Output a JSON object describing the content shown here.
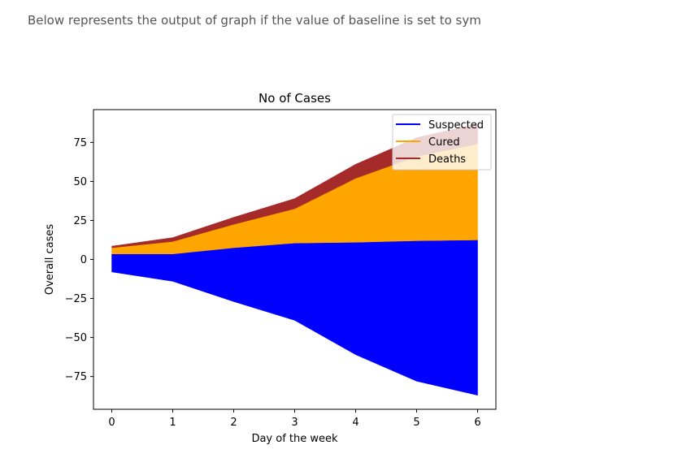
{
  "page": {
    "caption": "Below represents the output of graph if the value of baseline is set to sym"
  },
  "chart_data": {
    "type": "area",
    "stacked": true,
    "baseline": "sym",
    "title": "No of Cases",
    "xlabel": "Day of the week",
    "ylabel": "Overall cases",
    "x": [
      0,
      1,
      2,
      3,
      4,
      5,
      6
    ],
    "xlim": [
      -0.3,
      6.3
    ],
    "ylim": [
      -96,
      96
    ],
    "xticks": [
      "0",
      "1",
      "2",
      "3",
      "4",
      "5",
      "6"
    ],
    "yticks": [
      {
        "value": 75,
        "label": "75"
      },
      {
        "value": 50,
        "label": "50"
      },
      {
        "value": 25,
        "label": "25"
      },
      {
        "value": 0,
        "label": "0"
      },
      {
        "value": -25,
        "label": "−25"
      },
      {
        "value": -50,
        "label": "−50"
      },
      {
        "value": -75,
        "label": "−75"
      }
    ],
    "grid": false,
    "legend_position": "top-right",
    "series": [
      {
        "name": "Suspected",
        "color": "#0000ff",
        "lower": [
          -8,
          -14,
          -27,
          -39,
          -61,
          -78,
          -87
        ],
        "upper": [
          3.5,
          3.5,
          7.5,
          10.5,
          11,
          12,
          12.5
        ]
      },
      {
        "name": "Cured",
        "color": "#ffa500",
        "lower": [
          3.5,
          3.5,
          7.5,
          10.5,
          11,
          12,
          12.5
        ],
        "upper": [
          7.5,
          11.5,
          22.5,
          32.5,
          52,
          66,
          74
        ]
      },
      {
        "name": "Deaths",
        "color": "#a52a2a",
        "lower": [
          7.5,
          11.5,
          22.5,
          32.5,
          52,
          66,
          74
        ],
        "upper": [
          8.5,
          14,
          27,
          39,
          61,
          78,
          87
        ]
      }
    ]
  }
}
